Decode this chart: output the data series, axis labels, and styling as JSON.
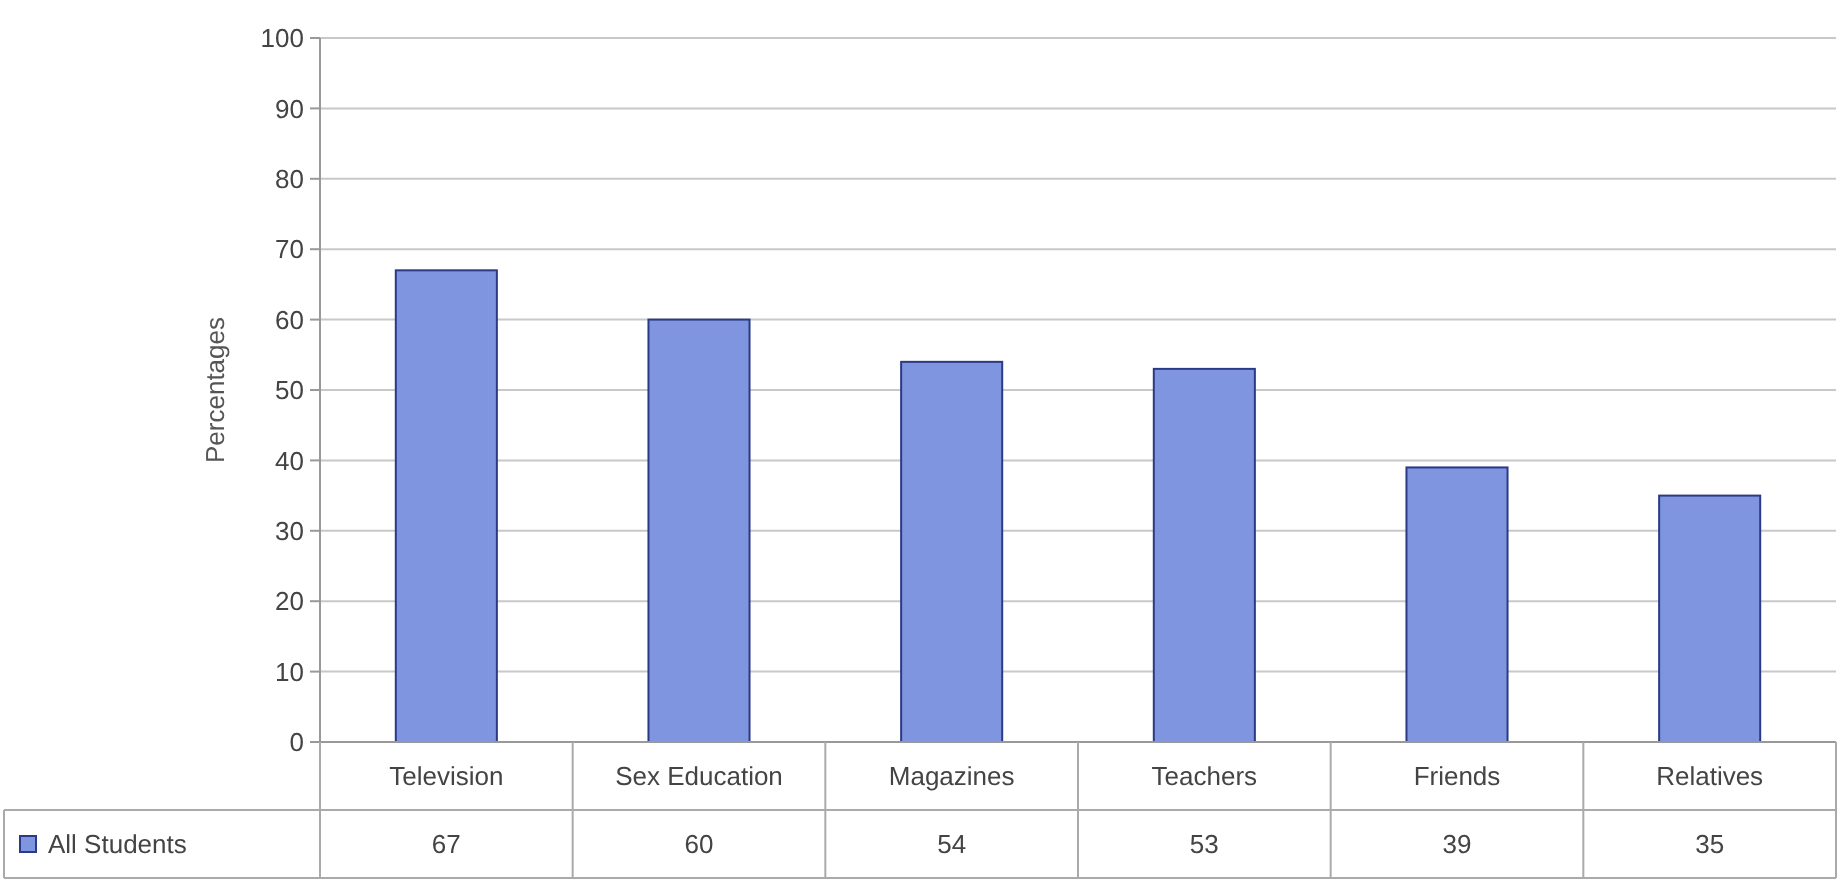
{
  "chart_data": {
    "type": "bar",
    "ylabel": "Percentages",
    "categories": [
      "Television",
      "Sex Education",
      "Magazines",
      "Teachers",
      "Friends",
      "Relatives"
    ],
    "series": [
      {
        "name": "All Students",
        "color": "#7f95e0",
        "values": [
          67,
          60,
          54,
          53,
          39,
          35
        ]
      }
    ],
    "ylim": [
      0,
      100
    ],
    "yticks": [
      0,
      10,
      20,
      30,
      40,
      50,
      60,
      70,
      80,
      90,
      100
    ],
    "grid": "y",
    "legend": "bottom left",
    "data_labels": true
  }
}
